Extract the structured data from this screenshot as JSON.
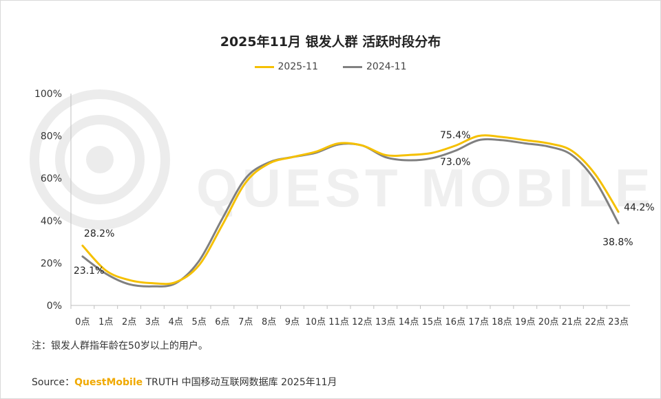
{
  "chart_data": {
    "type": "line",
    "title": "2025年11月 银发人群 活跃时段分布",
    "categories": [
      "0点",
      "1点",
      "2点",
      "3点",
      "4点",
      "5点",
      "6点",
      "7点",
      "8点",
      "9点",
      "10点",
      "11点",
      "12点",
      "13点",
      "14点",
      "15点",
      "16点",
      "17点",
      "18点",
      "19点",
      "20点",
      "21点",
      "22点",
      "23点"
    ],
    "series": [
      {
        "name": "2025-11",
        "color": "#f5c000",
        "values": [
          28.2,
          16.5,
          12.0,
          10.5,
          11.0,
          19.0,
          38.0,
          58.0,
          67.0,
          70.0,
          72.5,
          76.5,
          75.5,
          71.0,
          71.0,
          72.0,
          75.4,
          80.0,
          79.5,
          78.0,
          76.5,
          73.0,
          62.0,
          44.2
        ]
      },
      {
        "name": "2024-11",
        "color": "#808080",
        "values": [
          23.1,
          15.0,
          10.0,
          9.0,
          10.5,
          21.0,
          41.0,
          60.0,
          67.5,
          70.0,
          72.0,
          76.0,
          75.5,
          70.0,
          68.5,
          69.5,
          73.0,
          78.0,
          78.0,
          76.5,
          75.0,
          71.0,
          59.0,
          38.8
        ]
      }
    ],
    "ylim": [
      0,
      100
    ],
    "yticks": [
      "0%",
      "20%",
      "40%",
      "60%",
      "80%",
      "100%"
    ],
    "grid": false,
    "legend": "top-center",
    "annotations": [
      {
        "series": 0,
        "index": 0,
        "label": "28.2%"
      },
      {
        "series": 1,
        "index": 0,
        "label": "23.1%"
      },
      {
        "series": 0,
        "index": 16,
        "label": "75.4%"
      },
      {
        "series": 1,
        "index": 16,
        "label": "73.0%"
      },
      {
        "series": 0,
        "index": 23,
        "label": "44.2%"
      },
      {
        "series": 1,
        "index": 23,
        "label": "38.8%"
      }
    ]
  },
  "watermark": "QUEST MOBILE",
  "note": "注：银发人群指年龄在50岁以上的用户。",
  "source": {
    "prefix": "Source：",
    "brand": "QuestMobile",
    "text": " TRUTH 中国移动互联网数据库 2025年11月"
  }
}
